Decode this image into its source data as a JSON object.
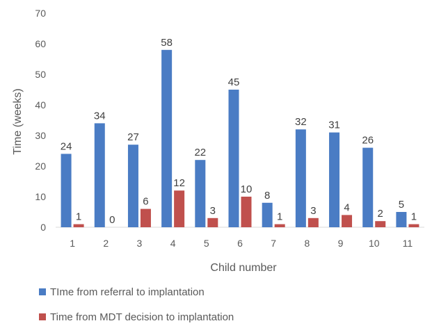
{
  "chart_data": {
    "type": "bar",
    "title": "",
    "xlabel": "Child number",
    "ylabel": "Time (weeks)",
    "ylim": [
      0,
      70
    ],
    "yticks": [
      0,
      10,
      20,
      30,
      40,
      50,
      60,
      70
    ],
    "grid": false,
    "legend_position": "bottom",
    "categories": [
      "1",
      "2",
      "3",
      "4",
      "5",
      "6",
      "7",
      "8",
      "9",
      "10",
      "11"
    ],
    "series": [
      {
        "name": "TIme from referral to implantation",
        "color": "#4a7cc4",
        "values": [
          24,
          34,
          27,
          58,
          22,
          45,
          8,
          32,
          31,
          26,
          5
        ]
      },
      {
        "name": "Time from MDT decision to implantation",
        "color": "#c0504d",
        "values": [
          1,
          0,
          6,
          12,
          3,
          10,
          1,
          3,
          4,
          2,
          1
        ]
      }
    ]
  }
}
